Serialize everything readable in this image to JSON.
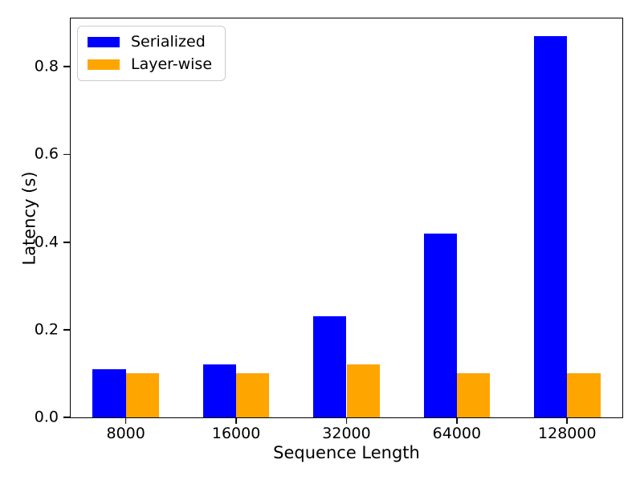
{
  "figure": {
    "background": "#ffffff"
  },
  "chart_data": {
    "type": "bar",
    "title": "",
    "xlabel": "Sequence Length",
    "ylabel": "Latency (s)",
    "categories": [
      "8000",
      "16000",
      "32000",
      "64000",
      "128000"
    ],
    "series": [
      {
        "name": "Serialized",
        "color": "#0000ff",
        "values": [
          0.11,
          0.12,
          0.23,
          0.42,
          0.87
        ]
      },
      {
        "name": "Layer-wise",
        "color": "#ffa500",
        "values": [
          0.1,
          0.1,
          0.12,
          0.1,
          0.1
        ]
      }
    ],
    "ylim": [
      0,
      0.91
    ],
    "yticks": [
      0.0,
      0.2,
      0.4,
      0.6,
      0.8
    ],
    "ytick_labels": [
      "0.0",
      "0.2",
      "0.4",
      "0.6",
      "0.8"
    ],
    "grid": false,
    "bar_width_fraction": 0.3,
    "legend": {
      "position": "upper-left",
      "entries": [
        "Serialized",
        "Layer-wise"
      ]
    },
    "axis_color": "#000000",
    "legend_border_color": "#cccccc"
  }
}
